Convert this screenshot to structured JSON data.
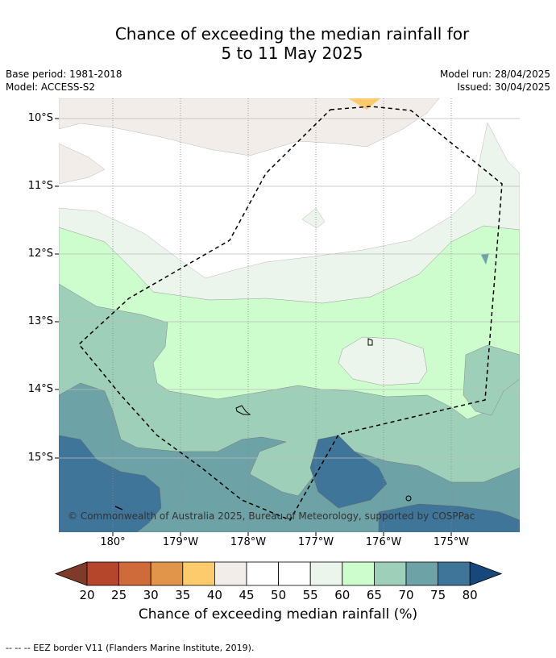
{
  "title": {
    "line1": "Chance of exceeding the median rainfall for",
    "line2": "5 to 11 May 2025"
  },
  "meta_left": [
    "Base period: 1981-2018",
    "Model: ACCESS-S2"
  ],
  "meta_right": [
    "Model run: 28/04/2025",
    "Issued: 30/04/2025"
  ],
  "lat_labels": [
    "10°S",
    "11°S",
    "12°S",
    "13°S",
    "14°S",
    "15°S"
  ],
  "lon_labels": [
    "180°",
    "179°W",
    "178°W",
    "177°W",
    "176°W",
    "175°W"
  ],
  "copyright": "© Commonwealth of Australia 2025, Bureau of Meteorology, supported by COSPPac",
  "colorbar": {
    "title": "Chance of exceeding median rainfall (%)",
    "ticks": [
      "20",
      "25",
      "30",
      "35",
      "40",
      "45",
      "50",
      "55",
      "60",
      "65",
      "70",
      "75",
      "80"
    ],
    "colors": [
      "#7f3b2a",
      "#b5452b",
      "#cf6a3a",
      "#e1954b",
      "#fdcb6c",
      "#f2ede8",
      "#ffffff",
      "#ffffff",
      "#ebf5eb",
      "#cdfccd",
      "#9dcfb9",
      "#6da2a6",
      "#3f7598",
      "#17487b"
    ]
  },
  "footnote": "--  --  -- EEZ border V11 (Flanders Marine Institute, 2019)."
}
